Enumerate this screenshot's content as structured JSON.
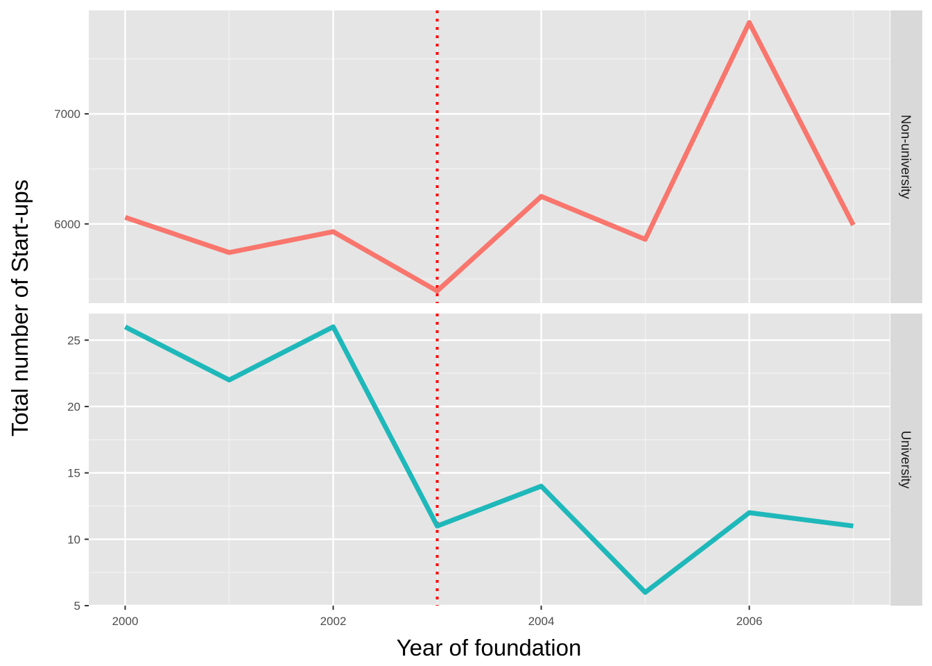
{
  "chart_data": {
    "type": "line",
    "xlabel": "Year of foundation",
    "ylabel": "Total number of Start-ups",
    "x_ticks": [
      2000,
      2002,
      2004,
      2006
    ],
    "x_range": [
      1999.65,
      2007.35
    ],
    "vline": {
      "x": 2003,
      "color": "#ff0000",
      "style": "dotted"
    },
    "panels": [
      {
        "name": "Non-university",
        "color": "#f8766d",
        "x": [
          2000,
          2001,
          2002,
          2003,
          2004,
          2005,
          2006,
          2007
        ],
        "values": [
          6060,
          5740,
          5930,
          5390,
          6250,
          5860,
          7830,
          5990
        ],
        "ylim": [
          5280,
          7940
        ],
        "y_ticks": [
          6000,
          7000
        ]
      },
      {
        "name": "University",
        "color": "#1fb8ba",
        "x": [
          2000,
          2001,
          2002,
          2003,
          2004,
          2005,
          2006,
          2007
        ],
        "values": [
          26,
          22,
          26,
          11,
          14,
          6,
          12,
          11
        ],
        "ylim": [
          5,
          27
        ],
        "y_ticks": [
          5,
          10,
          15,
          20,
          25
        ]
      }
    ],
    "grid": true,
    "legend": "none"
  }
}
